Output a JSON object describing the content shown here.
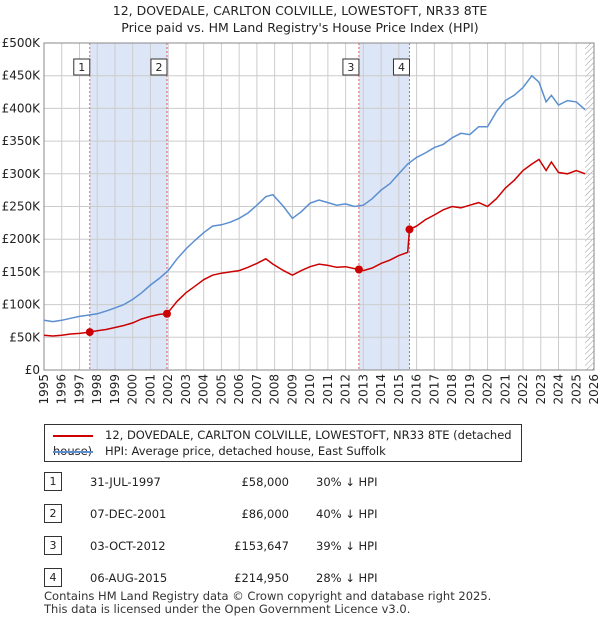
{
  "title_line1": "12, DOVEDALE, CARLTON COLVILLE, LOWESTOFT, NR33 8TE",
  "title_line2": "Price paid vs. HM Land Registry's House Price Index (HPI)",
  "legend": {
    "red_label": "12, DOVEDALE, CARLTON COLVILLE, LOWESTOFT, NR33 8TE (detached house)",
    "blue_label": "HPI: Average price, detached house, East Suffolk"
  },
  "sales": [
    {
      "num": "1",
      "date": "31-JUL-1997",
      "price": "£58,000",
      "hpi": "30% ↓ HPI"
    },
    {
      "num": "2",
      "date": "07-DEC-2001",
      "price": "£86,000",
      "hpi": "40% ↓ HPI"
    },
    {
      "num": "3",
      "date": "03-OCT-2012",
      "price": "£153,647",
      "hpi": "39% ↓ HPI"
    },
    {
      "num": "4",
      "date": "06-AUG-2015",
      "price": "£214,950",
      "hpi": "28% ↓ HPI"
    }
  ],
  "footer_line1": "Contains HM Land Registry data © Crown copyright and database right 2025.",
  "footer_line2": "This data is licensed under the Open Government Licence v3.0.",
  "colors": {
    "red": "#cc0000",
    "blue": "#5b8fd1",
    "band": "#dde6f6",
    "grid": "#cccccc"
  },
  "chart_data": {
    "type": "line",
    "xlim": [
      1995,
      2026
    ],
    "ylim": [
      0,
      500000
    ],
    "x_ticks": [
      1995,
      1996,
      1997,
      1998,
      1999,
      2000,
      2001,
      2002,
      2003,
      2004,
      2005,
      2006,
      2007,
      2008,
      2009,
      2010,
      2011,
      2012,
      2013,
      2014,
      2015,
      2016,
      2017,
      2018,
      2019,
      2020,
      2021,
      2022,
      2023,
      2024,
      2025,
      2026
    ],
    "y_ticks": [
      0,
      50000,
      100000,
      150000,
      200000,
      250000,
      300000,
      350000,
      400000,
      450000,
      500000
    ],
    "y_tick_labels": [
      "£0",
      "£50K",
      "£100K",
      "£150K",
      "£200K",
      "£250K",
      "£300K",
      "£350K",
      "£400K",
      "£450K",
      "£500K"
    ],
    "shaded_periods": [
      [
        1997.58,
        2001.93
      ],
      [
        2012.75,
        2015.6
      ]
    ],
    "hatched_from": 2025.5,
    "transactions": [
      {
        "label": "1",
        "x": 1997.58,
        "y": 58000
      },
      {
        "label": "2",
        "x": 2001.93,
        "y": 86000
      },
      {
        "label": "3",
        "x": 2012.75,
        "y": 153647
      },
      {
        "label": "4",
        "x": 2015.6,
        "y": 214950
      }
    ],
    "series": [
      {
        "name": "12, DOVEDALE, CARLTON COLVILLE, LOWESTOFT, NR33 8TE (detached house)",
        "color": "#cc0000",
        "x": [
          1995,
          1995.5,
          1996,
          1996.5,
          1997,
          1997.58,
          1998,
          1998.5,
          1999,
          1999.5,
          2000,
          2000.5,
          2001,
          2001.5,
          2001.93,
          2002.5,
          2003,
          2003.5,
          2004,
          2004.5,
          2005,
          2005.5,
          2006,
          2006.5,
          2007,
          2007.5,
          2007.9,
          2008.5,
          2009,
          2009.5,
          2010,
          2010.5,
          2011,
          2011.5,
          2012,
          2012.5,
          2012.75,
          2013,
          2013.5,
          2014,
          2014.5,
          2015,
          2015.5,
          2015.6,
          2016,
          2016.5,
          2017,
          2017.5,
          2018,
          2018.5,
          2019,
          2019.5,
          2020,
          2020.5,
          2021,
          2021.5,
          2022,
          2022.5,
          2022.9,
          2023.3,
          2023.6,
          2024,
          2024.5,
          2025,
          2025.5
        ],
        "values": [
          53000,
          52000,
          53000,
          55000,
          56000,
          58000,
          60000,
          62000,
          65000,
          68000,
          72000,
          78000,
          82000,
          85000,
          86000,
          105000,
          118000,
          128000,
          138000,
          145000,
          148000,
          150000,
          152000,
          157000,
          163000,
          170000,
          162000,
          152000,
          145000,
          152000,
          158000,
          162000,
          160000,
          157000,
          158000,
          155000,
          153647,
          152000,
          156000,
          163000,
          168000,
          175000,
          180000,
          214950,
          220000,
          230000,
          237000,
          245000,
          250000,
          248000,
          252000,
          256000,
          250000,
          262000,
          278000,
          290000,
          305000,
          315000,
          322000,
          305000,
          318000,
          302000,
          300000,
          305000,
          300000
        ]
      },
      {
        "name": "HPI: Average price, detached house, East Suffolk",
        "color": "#5b8fd1",
        "x": [
          1995,
          1995.5,
          1996,
          1996.5,
          1997,
          1997.5,
          1998,
          1998.5,
          1999,
          1999.5,
          2000,
          2000.5,
          2001,
          2001.5,
          2002,
          2002.5,
          2003,
          2003.5,
          2004,
          2004.5,
          2005,
          2005.5,
          2006,
          2006.5,
          2007,
          2007.5,
          2007.9,
          2008.5,
          2009,
          2009.5,
          2010,
          2010.5,
          2011,
          2011.5,
          2012,
          2012.5,
          2013,
          2013.5,
          2014,
          2014.5,
          2015,
          2015.5,
          2016,
          2016.5,
          2017,
          2017.5,
          2018,
          2018.5,
          2019,
          2019.5,
          2020,
          2020.5,
          2021,
          2021.5,
          2022,
          2022.5,
          2022.9,
          2023.3,
          2023.6,
          2024,
          2024.5,
          2025,
          2025.5
        ],
        "values": [
          76000,
          74000,
          76000,
          79000,
          82000,
          84000,
          86000,
          90000,
          95000,
          100000,
          108000,
          118000,
          130000,
          140000,
          152000,
          170000,
          185000,
          198000,
          210000,
          220000,
          222000,
          226000,
          232000,
          240000,
          252000,
          265000,
          268000,
          250000,
          232000,
          242000,
          255000,
          260000,
          256000,
          252000,
          254000,
          250000,
          252000,
          262000,
          275000,
          285000,
          300000,
          315000,
          325000,
          332000,
          340000,
          345000,
          355000,
          362000,
          360000,
          372000,
          372000,
          395000,
          412000,
          420000,
          432000,
          450000,
          440000,
          410000,
          420000,
          405000,
          412000,
          410000,
          398000
        ]
      }
    ]
  }
}
